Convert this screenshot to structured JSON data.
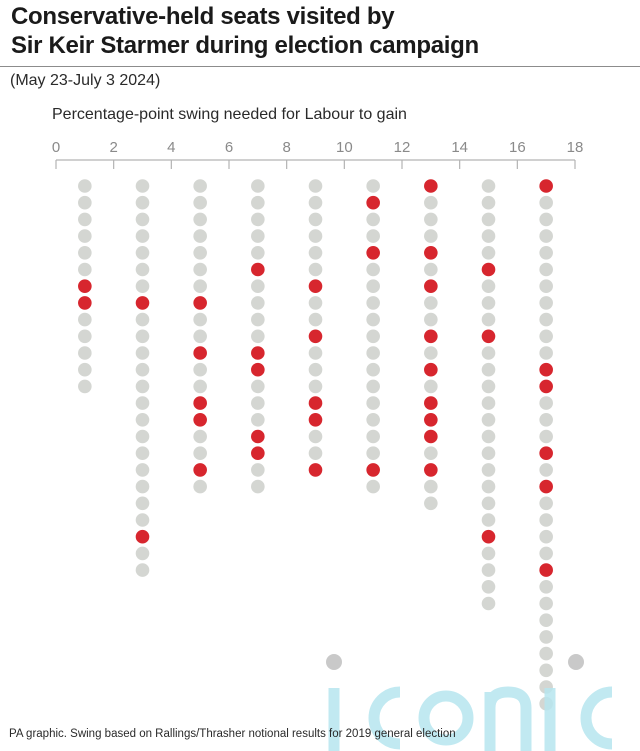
{
  "header": {
    "title_line1": "Conservative-held seats visited by",
    "title_line2": "Sir Keir Starmer during election campaign",
    "subtitle": "(May 23-July 3 2024)"
  },
  "footer": {
    "source": "PA graphic. Swing based on Rallings/Thrasher notional results for 2019 general election"
  },
  "watermark": {
    "text": "iconic"
  },
  "colors": {
    "visited": "#d7262e",
    "not_visited": "#d4d6d2",
    "axis": "#b3b3b3",
    "tick_label": "#8a8a8a"
  },
  "chart_data": {
    "type": "dot-strip",
    "xlabel": "Percentage-point swing needed for Labour to gain",
    "xlim": [
      0,
      18
    ],
    "ticks": [
      0,
      2,
      4,
      6,
      8,
      10,
      12,
      14,
      16,
      18
    ],
    "legend": "none",
    "series": [
      {
        "x": 1,
        "seats": 13,
        "visited_positions": [
          7,
          8
        ]
      },
      {
        "x": 3,
        "seats": 24,
        "visited_positions": [
          8,
          22
        ]
      },
      {
        "x": 5,
        "seats": 19,
        "visited_positions": [
          8,
          11,
          14,
          15,
          18
        ]
      },
      {
        "x": 7,
        "seats": 19,
        "visited_positions": [
          6,
          11,
          12,
          16,
          17
        ]
      },
      {
        "x": 9,
        "seats": 18,
        "visited_positions": [
          7,
          10,
          14,
          15,
          18
        ]
      },
      {
        "x": 11,
        "seats": 19,
        "visited_positions": [
          2,
          5,
          18
        ]
      },
      {
        "x": 13,
        "seats": 20,
        "visited_positions": [
          1,
          5,
          7,
          10,
          12,
          14,
          15,
          16,
          18
        ]
      },
      {
        "x": 15,
        "seats": 26,
        "visited_positions": [
          6,
          10,
          22
        ]
      },
      {
        "x": 17,
        "seats": 32,
        "visited_positions": [
          1,
          12,
          13,
          17,
          19,
          24
        ]
      }
    ]
  }
}
